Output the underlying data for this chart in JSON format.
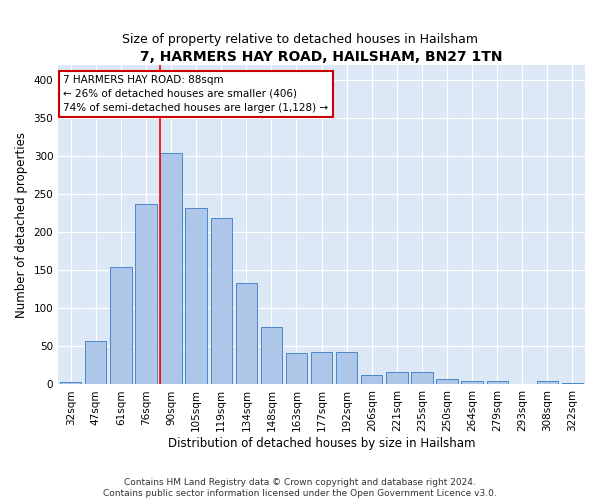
{
  "title": "7, HARMERS HAY ROAD, HAILSHAM, BN27 1TN",
  "subtitle": "Size of property relative to detached houses in Hailsham",
  "xlabel": "Distribution of detached houses by size in Hailsham",
  "ylabel": "Number of detached properties",
  "categories": [
    "32sqm",
    "47sqm",
    "61sqm",
    "76sqm",
    "90sqm",
    "105sqm",
    "119sqm",
    "134sqm",
    "148sqm",
    "163sqm",
    "177sqm",
    "192sqm",
    "206sqm",
    "221sqm",
    "235sqm",
    "250sqm",
    "264sqm",
    "279sqm",
    "293sqm",
    "308sqm",
    "322sqm"
  ],
  "values": [
    3,
    57,
    155,
    237,
    305,
    232,
    219,
    133,
    76,
    42,
    43,
    43,
    12,
    17,
    17,
    7,
    4,
    4,
    0,
    4,
    2
  ],
  "bar_color": "#aec6e8",
  "bar_edge_color": "#4a86c8",
  "red_line_x": 4,
  "annotation_line1": "7 HARMERS HAY ROAD: 88sqm",
  "annotation_line2": "← 26% of detached houses are smaller (406)",
  "annotation_line3": "74% of semi-detached houses are larger (1,128) →",
  "annotation_box_color": "#ffffff",
  "annotation_box_edge": "#cc0000",
  "ylim": [
    0,
    420
  ],
  "yticks": [
    0,
    50,
    100,
    150,
    200,
    250,
    300,
    350,
    400
  ],
  "background_color": "#dce8f5",
  "footer_text": "Contains HM Land Registry data © Crown copyright and database right 2024.\nContains public sector information licensed under the Open Government Licence v3.0.",
  "title_fontsize": 10,
  "subtitle_fontsize": 9,
  "xlabel_fontsize": 8.5,
  "ylabel_fontsize": 8.5,
  "tick_fontsize": 7.5,
  "annotation_fontsize": 7.5,
  "footer_fontsize": 6.5
}
